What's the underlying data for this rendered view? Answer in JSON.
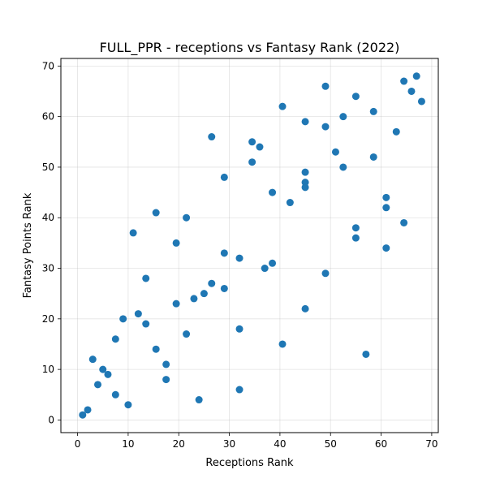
{
  "chart_data": {
    "type": "scatter",
    "title": "FULL_PPR - receptions vs Fantasy Rank (2022)",
    "xlabel": "Receptions Rank",
    "ylabel": "Fantasy Points Rank",
    "xlim": [
      -3.3,
      71.3
    ],
    "ylim": [
      -2.5,
      71.5
    ],
    "xticks": [
      0,
      10,
      20,
      30,
      40,
      50,
      60,
      70
    ],
    "yticks": [
      0,
      10,
      20,
      30,
      40,
      50,
      60,
      70
    ],
    "grid": true,
    "marker_color": "#1f77b4",
    "points": [
      {
        "x": 1,
        "y": 1
      },
      {
        "x": 2,
        "y": 2
      },
      {
        "x": 3,
        "y": 12
      },
      {
        "x": 4,
        "y": 7
      },
      {
        "x": 5,
        "y": 10
      },
      {
        "x": 6,
        "y": 9
      },
      {
        "x": 7.5,
        "y": 5
      },
      {
        "x": 7.5,
        "y": 16
      },
      {
        "x": 9,
        "y": 20
      },
      {
        "x": 10,
        "y": 3
      },
      {
        "x": 11,
        "y": 37
      },
      {
        "x": 12,
        "y": 21
      },
      {
        "x": 13.5,
        "y": 28
      },
      {
        "x": 13.5,
        "y": 19
      },
      {
        "x": 15.5,
        "y": 41
      },
      {
        "x": 15.5,
        "y": 14
      },
      {
        "x": 17.5,
        "y": 11
      },
      {
        "x": 17.5,
        "y": 8
      },
      {
        "x": 19.5,
        "y": 35
      },
      {
        "x": 19.5,
        "y": 23
      },
      {
        "x": 21.5,
        "y": 40
      },
      {
        "x": 21.5,
        "y": 17
      },
      {
        "x": 23,
        "y": 24
      },
      {
        "x": 24,
        "y": 4
      },
      {
        "x": 25,
        "y": 25
      },
      {
        "x": 26.5,
        "y": 56
      },
      {
        "x": 26.5,
        "y": 27
      },
      {
        "x": 29,
        "y": 48
      },
      {
        "x": 29,
        "y": 33
      },
      {
        "x": 29,
        "y": 26
      },
      {
        "x": 32,
        "y": 32
      },
      {
        "x": 32,
        "y": 18
      },
      {
        "x": 32,
        "y": 6
      },
      {
        "x": 34.5,
        "y": 55
      },
      {
        "x": 34.5,
        "y": 51
      },
      {
        "x": 36,
        "y": 54
      },
      {
        "x": 37,
        "y": 30
      },
      {
        "x": 38.5,
        "y": 45
      },
      {
        "x": 38.5,
        "y": 31
      },
      {
        "x": 40.5,
        "y": 62
      },
      {
        "x": 40.5,
        "y": 15
      },
      {
        "x": 42,
        "y": 43
      },
      {
        "x": 45,
        "y": 59
      },
      {
        "x": 45,
        "y": 49
      },
      {
        "x": 45,
        "y": 47
      },
      {
        "x": 45,
        "y": 46
      },
      {
        "x": 45,
        "y": 22
      },
      {
        "x": 49,
        "y": 66
      },
      {
        "x": 49,
        "y": 58
      },
      {
        "x": 49,
        "y": 29
      },
      {
        "x": 51,
        "y": 53
      },
      {
        "x": 52.5,
        "y": 60
      },
      {
        "x": 52.5,
        "y": 50
      },
      {
        "x": 55,
        "y": 64
      },
      {
        "x": 55,
        "y": 38
      },
      {
        "x": 55,
        "y": 36
      },
      {
        "x": 57,
        "y": 13
      },
      {
        "x": 58.5,
        "y": 61
      },
      {
        "x": 58.5,
        "y": 52
      },
      {
        "x": 61,
        "y": 44
      },
      {
        "x": 61,
        "y": 42
      },
      {
        "x": 61,
        "y": 34
      },
      {
        "x": 63,
        "y": 57
      },
      {
        "x": 64.5,
        "y": 67
      },
      {
        "x": 64.5,
        "y": 39
      },
      {
        "x": 66,
        "y": 65
      },
      {
        "x": 67,
        "y": 68
      },
      {
        "x": 68,
        "y": 63
      }
    ]
  }
}
